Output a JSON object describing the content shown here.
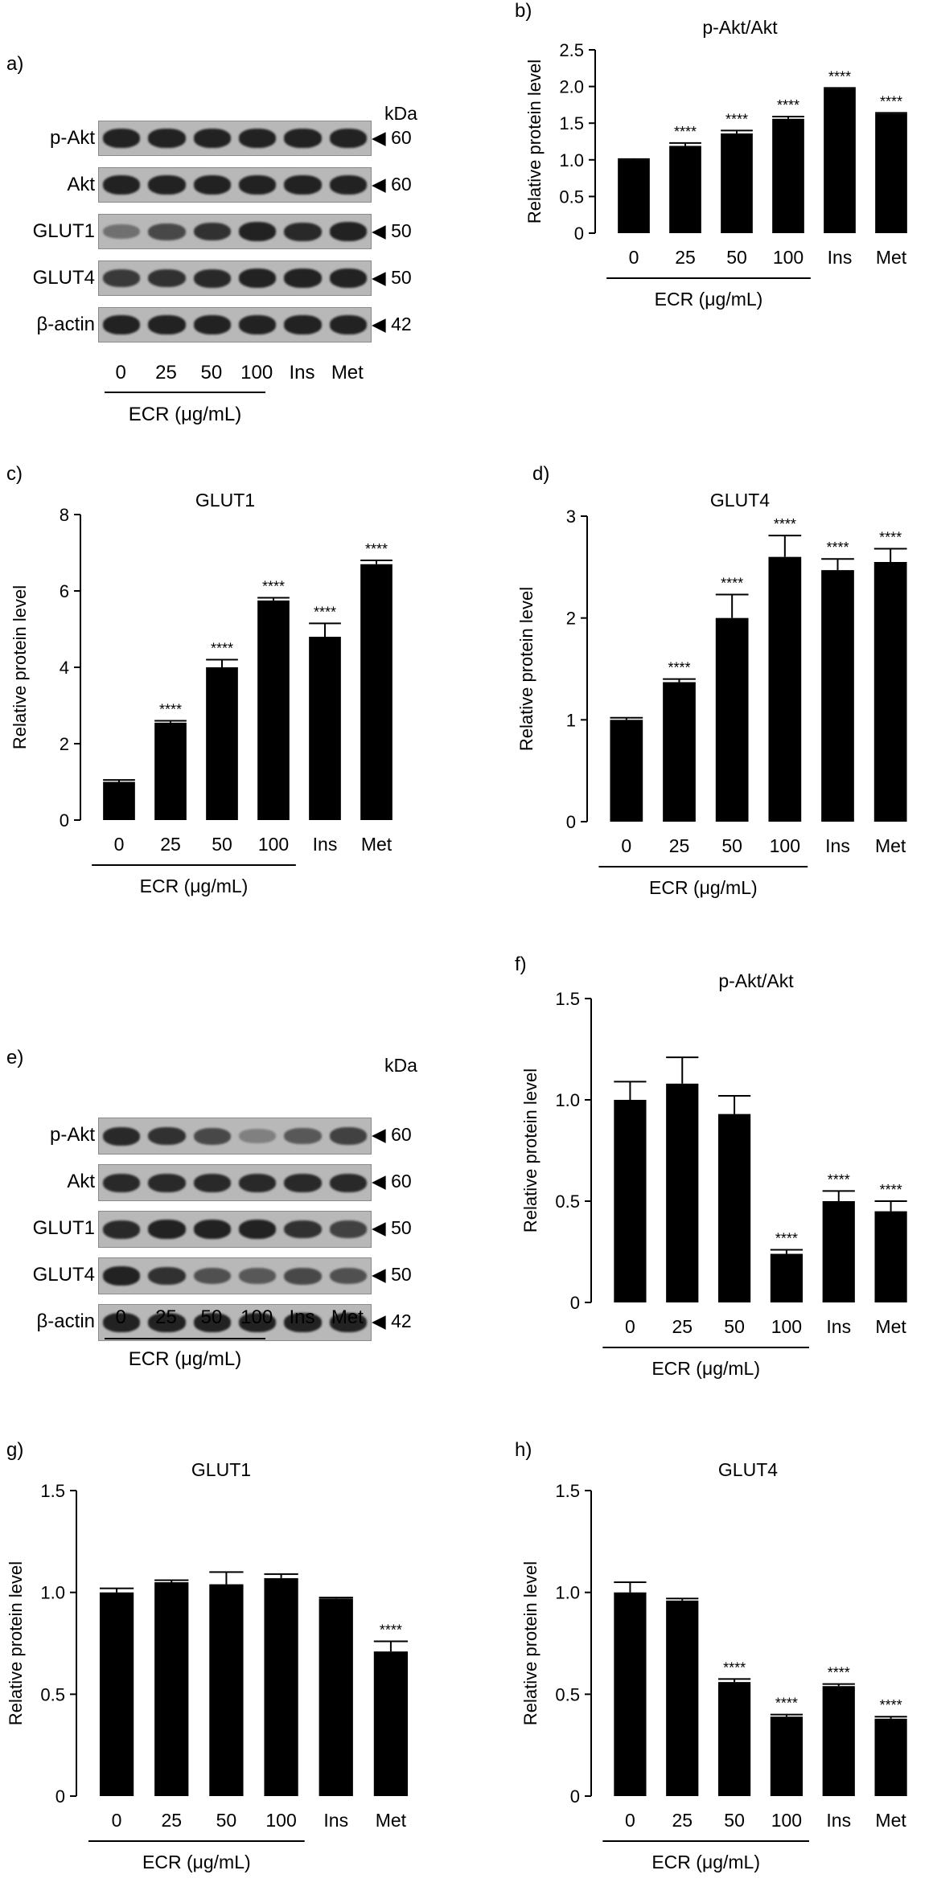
{
  "panel_letters": {
    "a": "a)",
    "b": "b)",
    "c": "c)",
    "d": "d)",
    "e": "e)",
    "f": "f)",
    "g": "g)",
    "h": "h)"
  },
  "blots": [
    {
      "unit_label": "kDa",
      "lane_labels": [
        "0",
        "25",
        "50",
        "100",
        "Ins",
        "Met"
      ],
      "group_label": "ECR (μg/mL)",
      "rows": [
        {
          "label": "p-Akt",
          "marker": "◀ 60",
          "intensity": [
            0.95,
            0.95,
            0.95,
            0.95,
            0.95,
            0.95
          ]
        },
        {
          "label": "Akt",
          "marker": "◀ 60",
          "intensity": [
            0.95,
            0.95,
            0.95,
            0.95,
            0.95,
            0.95
          ]
        },
        {
          "label": "GLUT1",
          "marker": "◀ 50",
          "intensity": [
            0.45,
            0.7,
            0.85,
            0.95,
            0.9,
            0.95
          ]
        },
        {
          "label": "GLUT4",
          "marker": "◀ 50",
          "intensity": [
            0.8,
            0.85,
            0.9,
            0.95,
            0.95,
            0.95
          ]
        },
        {
          "label": "β-actin",
          "marker": "◀ 42",
          "intensity": [
            0.95,
            0.95,
            0.95,
            0.95,
            0.95,
            0.95
          ]
        }
      ]
    },
    {
      "unit_label": "kDa",
      "lane_labels": [
        "0",
        "25",
        "50",
        "100",
        "Ins",
        "Met"
      ],
      "group_label": "ECR (μg/mL)",
      "rows": [
        {
          "label": "p-Akt",
          "marker": "◀ 60",
          "intensity": [
            0.9,
            0.85,
            0.7,
            0.35,
            0.6,
            0.75
          ]
        },
        {
          "label": "Akt",
          "marker": "◀ 60",
          "intensity": [
            0.9,
            0.9,
            0.9,
            0.9,
            0.9,
            0.9
          ]
        },
        {
          "label": "GLUT1",
          "marker": "◀ 50",
          "intensity": [
            0.9,
            0.95,
            0.95,
            0.95,
            0.85,
            0.75
          ]
        },
        {
          "label": "GLUT4",
          "marker": "◀ 50",
          "intensity": [
            0.95,
            0.85,
            0.65,
            0.6,
            0.7,
            0.65
          ]
        },
        {
          "label": "β-actin",
          "marker": "◀ 42",
          "intensity": [
            0.95,
            0.95,
            0.95,
            0.95,
            0.95,
            0.95
          ]
        }
      ]
    }
  ],
  "chart_data": [
    {
      "type": "bar",
      "title": "p-Akt/Akt",
      "ylabel": "Relative protein level",
      "xlabel": "",
      "categories": [
        "0",
        "25",
        "50",
        "100",
        "Ins",
        "Met"
      ],
      "values": [
        1.0,
        1.19,
        1.36,
        1.56,
        1.97,
        1.63
      ],
      "errors": [
        0.01,
        0.04,
        0.04,
        0.03,
        0.01,
        0.01
      ],
      "significance": [
        "",
        "****",
        "****",
        "****",
        "****",
        "****"
      ],
      "ylim": [
        0,
        2.5
      ],
      "yticks": [
        "0",
        "0.5",
        "1.0",
        "1.5",
        "2.0",
        "2.5"
      ],
      "group_label": "ECR (μg/mL)"
    },
    {
      "type": "bar",
      "title": "GLUT1",
      "ylabel": "Relative protein level",
      "xlabel": "",
      "categories": [
        "0",
        "25",
        "50",
        "100",
        "Ins",
        "Met"
      ],
      "values": [
        1.0,
        2.55,
        4.0,
        5.75,
        4.8,
        6.7
      ],
      "errors": [
        0.05,
        0.05,
        0.2,
        0.07,
        0.35,
        0.1
      ],
      "significance": [
        "",
        "****",
        "****",
        "****",
        "****",
        "****"
      ],
      "ylim": [
        0,
        8
      ],
      "yticks": [
        "0",
        "2",
        "4",
        "6",
        "8"
      ],
      "group_label": "ECR (μg/mL)"
    },
    {
      "type": "bar",
      "title": "GLUT4",
      "ylabel": "Relative protein level",
      "xlabel": "",
      "categories": [
        "0",
        "25",
        "50",
        "100",
        "Ins",
        "Met"
      ],
      "values": [
        1.0,
        1.37,
        2.0,
        2.6,
        2.47,
        2.55
      ],
      "errors": [
        0.02,
        0.03,
        0.23,
        0.21,
        0.11,
        0.13
      ],
      "significance": [
        "",
        "****",
        "****",
        "****",
        "****",
        "****"
      ],
      "ylim": [
        0,
        3
      ],
      "yticks": [
        "0",
        "1",
        "2",
        "3"
      ],
      "group_label": "ECR (μg/mL)"
    },
    {
      "type": "bar",
      "title": "p-Akt/Akt",
      "ylabel": "Relative protein level",
      "xlabel": "",
      "categories": [
        "0",
        "25",
        "50",
        "100",
        "Ins",
        "Met"
      ],
      "values": [
        1.0,
        1.08,
        0.93,
        0.24,
        0.5,
        0.45
      ],
      "errors": [
        0.09,
        0.13,
        0.09,
        0.02,
        0.05,
        0.05
      ],
      "significance": [
        "",
        "",
        "",
        "****",
        "****",
        "****"
      ],
      "ylim": [
        0,
        1.5
      ],
      "yticks": [
        "0",
        "0.5",
        "1.0",
        "1.5"
      ],
      "group_label": "ECR (μg/mL)"
    },
    {
      "type": "bar",
      "title": "GLUT1",
      "ylabel": "Relative protein level",
      "xlabel": "",
      "categories": [
        "0",
        "25",
        "50",
        "100",
        "Ins",
        "Met"
      ],
      "values": [
        1.0,
        1.05,
        1.04,
        1.07,
        0.97,
        0.71
      ],
      "errors": [
        0.02,
        0.01,
        0.06,
        0.02,
        0.005,
        0.05
      ],
      "significance": [
        "",
        "",
        "",
        "",
        "",
        "****"
      ],
      "ylim": [
        0,
        1.5
      ],
      "yticks": [
        "0",
        "0.5",
        "1.0",
        "1.5"
      ],
      "group_label": "ECR (μg/mL)"
    },
    {
      "type": "bar",
      "title": "GLUT4",
      "ylabel": "Relative protein level",
      "xlabel": "",
      "categories": [
        "0",
        "25",
        "50",
        "100",
        "Ins",
        "Met"
      ],
      "values": [
        1.0,
        0.96,
        0.56,
        0.39,
        0.54,
        0.38
      ],
      "errors": [
        0.05,
        0.01,
        0.015,
        0.01,
        0.01,
        0.01
      ],
      "significance": [
        "",
        "",
        "****",
        "****",
        "****",
        "****"
      ],
      "ylim": [
        0,
        1.5
      ],
      "yticks": [
        "0",
        "0.5",
        "1.0",
        "1.5"
      ],
      "group_label": "ECR (μg/mL)"
    }
  ]
}
